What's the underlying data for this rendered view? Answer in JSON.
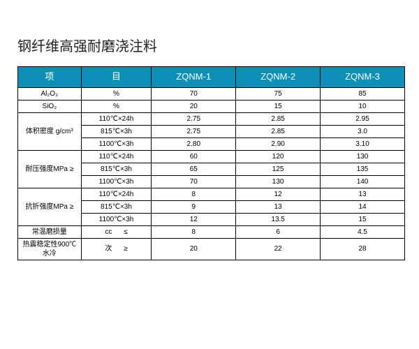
{
  "title": "钢纤维高强耐磨浇注料",
  "header": {
    "item1": "项",
    "item2": "目",
    "c1": "ZQNM-1",
    "c2": "ZQNM-2",
    "c3": "ZQNM-3"
  },
  "rows": {
    "al2o3": {
      "label": "Al₂O₃",
      "unit": "%",
      "v1": "70",
      "v2": "75",
      "v3": "85"
    },
    "sio2": {
      "label": "SiO₂",
      "unit": "%",
      "v1": "20",
      "v2": "15",
      "v3": "10"
    },
    "density": {
      "label": "体积密度 g/cm³",
      "r1": {
        "cond": "110℃×24h",
        "v1": "2.75",
        "v2": "2.85",
        "v3": "2.95"
      },
      "r2": {
        "cond": "815℃×3h",
        "v1": "2.75",
        "v2": "2.85",
        "v3": "3.0"
      },
      "r3": {
        "cond": "1100℃×3h",
        "v1": "2.80",
        "v2": "2.90",
        "v3": "3.10"
      }
    },
    "compress": {
      "label": "耐压强度MPa ≥",
      "r1": {
        "cond": "110℃×24h",
        "v1": "60",
        "v2": "120",
        "v3": "130"
      },
      "r2": {
        "cond": "815℃×3h",
        "v1": "65",
        "v2": "125",
        "v3": "135"
      },
      "r3": {
        "cond": "1100℃×3h",
        "v1": "70",
        "v2": "130",
        "v3": "140"
      }
    },
    "flexural": {
      "label": "抗折强度MPa ≥",
      "r1": {
        "cond": "110℃×24h",
        "v1": "8",
        "v2": "12",
        "v3": "13"
      },
      "r2": {
        "cond": "815℃×3h",
        "v1": "9",
        "v2": "13",
        "v3": "14"
      },
      "r3": {
        "cond": "1100℃×3h",
        "v1": "12",
        "v2": "13.5",
        "v3": "15"
      }
    },
    "wear": {
      "label": "常温磨损量",
      "unit": "cc",
      "cmp": "≤",
      "v1": "8",
      "v2": "6",
      "v3": "4.5"
    },
    "thermal": {
      "label": "热震稳定性900℃水冷",
      "unit": "次",
      "cmp": "≥",
      "v1": "20",
      "v2": "22",
      "v3": "28"
    }
  },
  "style": {
    "header_bg": "#0d8fb8",
    "header_fg": "#ffffff",
    "border_color": "#000000",
    "body_font_size": 10,
    "header_font_size": 13,
    "title_font_size": 20
  }
}
